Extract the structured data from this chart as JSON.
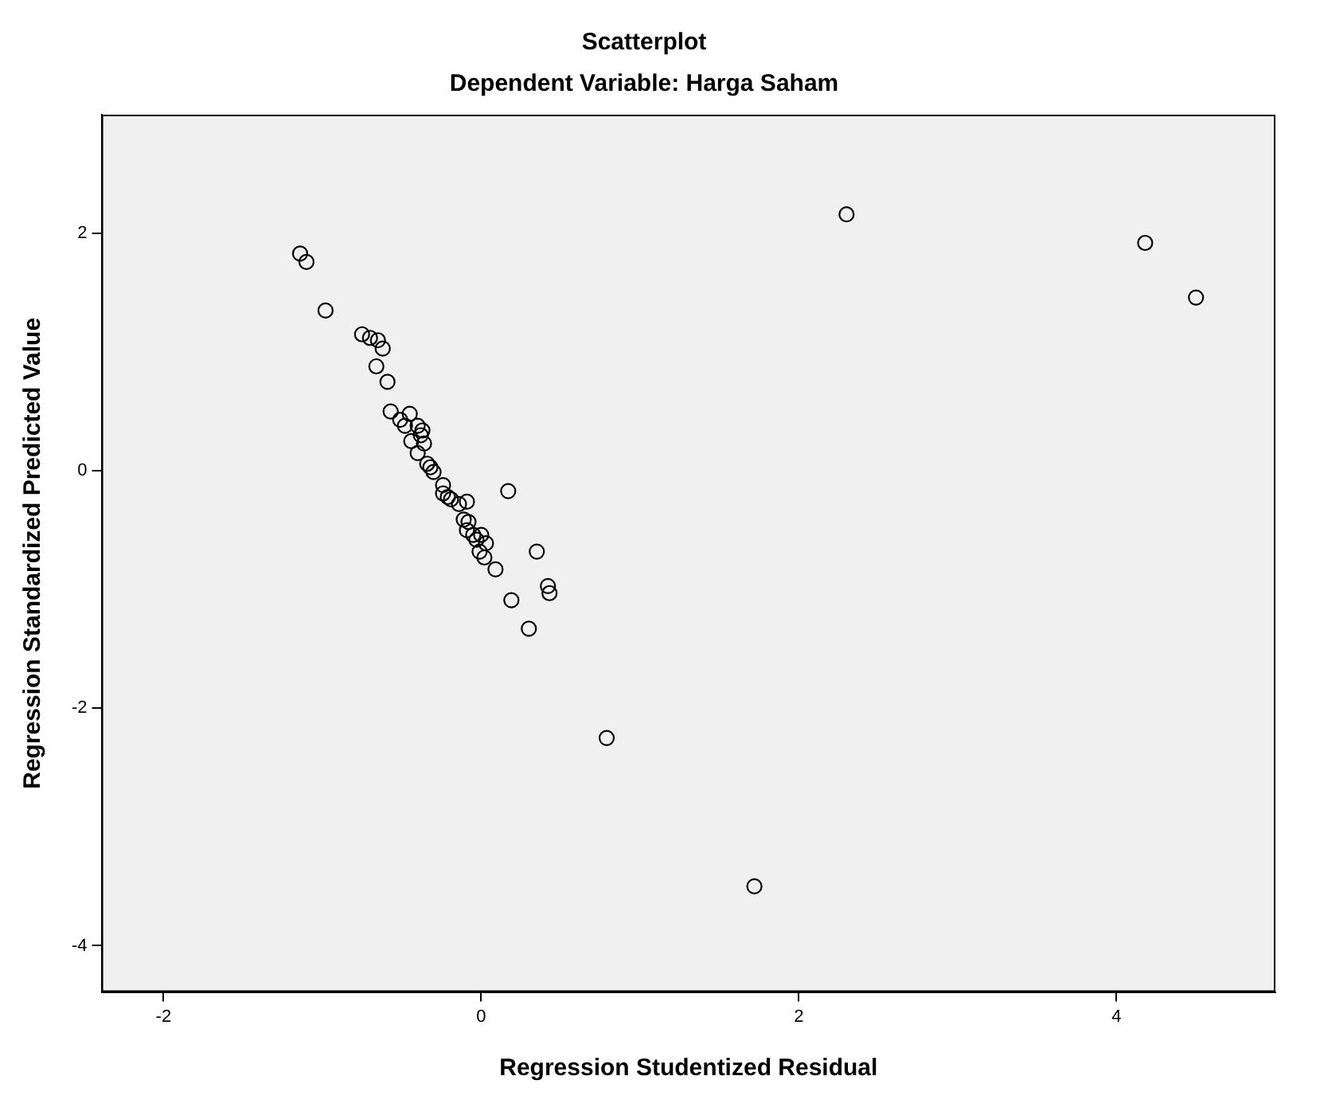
{
  "chart_data": {
    "type": "scatter",
    "title": "Scatterplot",
    "subtitle": "Dependent Variable: Harga Saham",
    "xlabel": "Regression Studentized Residual",
    "ylabel": "Regression Standardized Predicted Value",
    "xlim": [
      -2.39,
      5.0
    ],
    "ylim": [
      -4.39,
      3.0
    ],
    "xticks": [
      -2,
      0,
      2,
      4
    ],
    "yticks": [
      -4,
      -2,
      0,
      2
    ],
    "grid": false,
    "legend": false,
    "marker": "circle",
    "series": [
      {
        "color": "#000000",
        "x": [
          -1.14,
          -1.1,
          -0.98,
          -0.75,
          -0.7,
          -0.65,
          -0.62,
          -0.66,
          -0.59,
          -0.57,
          -0.45,
          -0.51,
          -0.48,
          -0.4,
          -0.37,
          -0.38,
          -0.36,
          -0.44,
          -0.4,
          -0.34,
          -0.32,
          -0.3,
          -0.24,
          -0.24,
          -0.21,
          -0.19,
          -0.14,
          -0.09,
          0.17,
          -0.11,
          -0.08,
          -0.09,
          -0.05,
          -0.03,
          0.0,
          0.03,
          -0.01,
          0.02,
          0.09,
          0.35,
          0.42,
          0.43,
          0.19,
          0.3,
          0.79,
          1.72,
          2.3,
          4.18,
          4.5
        ],
        "values": [
          1.83,
          1.76,
          1.35,
          1.15,
          1.12,
          1.1,
          1.03,
          0.88,
          0.75,
          0.5,
          0.48,
          0.43,
          0.38,
          0.38,
          0.34,
          0.3,
          0.23,
          0.25,
          0.15,
          0.06,
          0.03,
          -0.01,
          -0.12,
          -0.19,
          -0.22,
          -0.24,
          -0.28,
          -0.26,
          -0.17,
          -0.41,
          -0.43,
          -0.5,
          -0.54,
          -0.58,
          -0.54,
          -0.61,
          -0.68,
          -0.73,
          -0.83,
          -0.68,
          -0.97,
          -1.03,
          -1.09,
          -1.33,
          -2.25,
          -3.5,
          2.16,
          1.92,
          1.46
        ]
      }
    ]
  }
}
